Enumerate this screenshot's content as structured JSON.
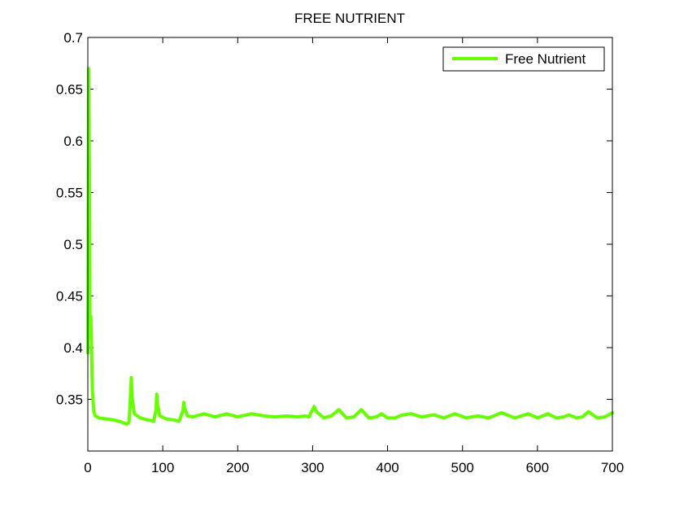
{
  "chart_data": {
    "type": "line",
    "title": "FREE NUTRIENT",
    "xlabel": "",
    "ylabel": "",
    "xlim": [
      0,
      700
    ],
    "ylim": [
      0.3,
      0.7
    ],
    "xticks": [
      "0",
      "100",
      "200",
      "300",
      "400",
      "500",
      "600",
      "700"
    ],
    "yticks": [
      "0.35",
      "0.4",
      "0.45",
      "0.5",
      "0.55",
      "0.6",
      "0.65",
      "0.7"
    ],
    "grid": false,
    "legend_position": "top-right",
    "series": [
      {
        "name": "Free Nutrient",
        "color": "#66ff00",
        "points": [
          [
            0,
            0.395
          ],
          [
            1,
            0.67
          ],
          [
            2,
            0.58
          ],
          [
            3,
            0.41
          ],
          [
            4,
            0.43
          ],
          [
            5,
            0.4
          ],
          [
            6,
            0.36
          ],
          [
            8,
            0.338
          ],
          [
            10,
            0.334
          ],
          [
            15,
            0.332
          ],
          [
            25,
            0.331
          ],
          [
            35,
            0.33
          ],
          [
            45,
            0.328
          ],
          [
            52,
            0.326
          ],
          [
            55,
            0.328
          ],
          [
            57,
            0.355
          ],
          [
            58,
            0.371
          ],
          [
            59,
            0.352
          ],
          [
            62,
            0.336
          ],
          [
            70,
            0.332
          ],
          [
            80,
            0.33
          ],
          [
            88,
            0.329
          ],
          [
            91,
            0.34
          ],
          [
            92,
            0.355
          ],
          [
            93,
            0.345
          ],
          [
            96,
            0.334
          ],
          [
            105,
            0.331
          ],
          [
            115,
            0.33
          ],
          [
            122,
            0.329
          ],
          [
            127,
            0.339
          ],
          [
            128,
            0.347
          ],
          [
            129,
            0.342
          ],
          [
            133,
            0.334
          ],
          [
            140,
            0.333
          ],
          [
            155,
            0.336
          ],
          [
            170,
            0.333
          ],
          [
            185,
            0.336
          ],
          [
            200,
            0.333
          ],
          [
            218,
            0.336
          ],
          [
            235,
            0.334
          ],
          [
            250,
            0.333
          ],
          [
            265,
            0.334
          ],
          [
            280,
            0.333
          ],
          [
            290,
            0.334
          ],
          [
            295,
            0.333
          ],
          [
            300,
            0.34
          ],
          [
            302,
            0.343
          ],
          [
            305,
            0.338
          ],
          [
            315,
            0.332
          ],
          [
            325,
            0.334
          ],
          [
            335,
            0.34
          ],
          [
            345,
            0.332
          ],
          [
            355,
            0.333
          ],
          [
            365,
            0.34
          ],
          [
            375,
            0.332
          ],
          [
            385,
            0.333
          ],
          [
            392,
            0.336
          ],
          [
            400,
            0.332
          ],
          [
            410,
            0.332
          ],
          [
            420,
            0.335
          ],
          [
            432,
            0.336
          ],
          [
            445,
            0.333
          ],
          [
            462,
            0.335
          ],
          [
            475,
            0.332
          ],
          [
            490,
            0.336
          ],
          [
            505,
            0.332
          ],
          [
            520,
            0.334
          ],
          [
            535,
            0.332
          ],
          [
            552,
            0.337
          ],
          [
            570,
            0.332
          ],
          [
            588,
            0.336
          ],
          [
            600,
            0.332
          ],
          [
            614,
            0.336
          ],
          [
            625,
            0.332
          ],
          [
            635,
            0.333
          ],
          [
            642,
            0.335
          ],
          [
            652,
            0.332
          ],
          [
            660,
            0.333
          ],
          [
            668,
            0.338
          ],
          [
            680,
            0.332
          ],
          [
            690,
            0.333
          ],
          [
            700,
            0.337
          ]
        ]
      }
    ]
  }
}
